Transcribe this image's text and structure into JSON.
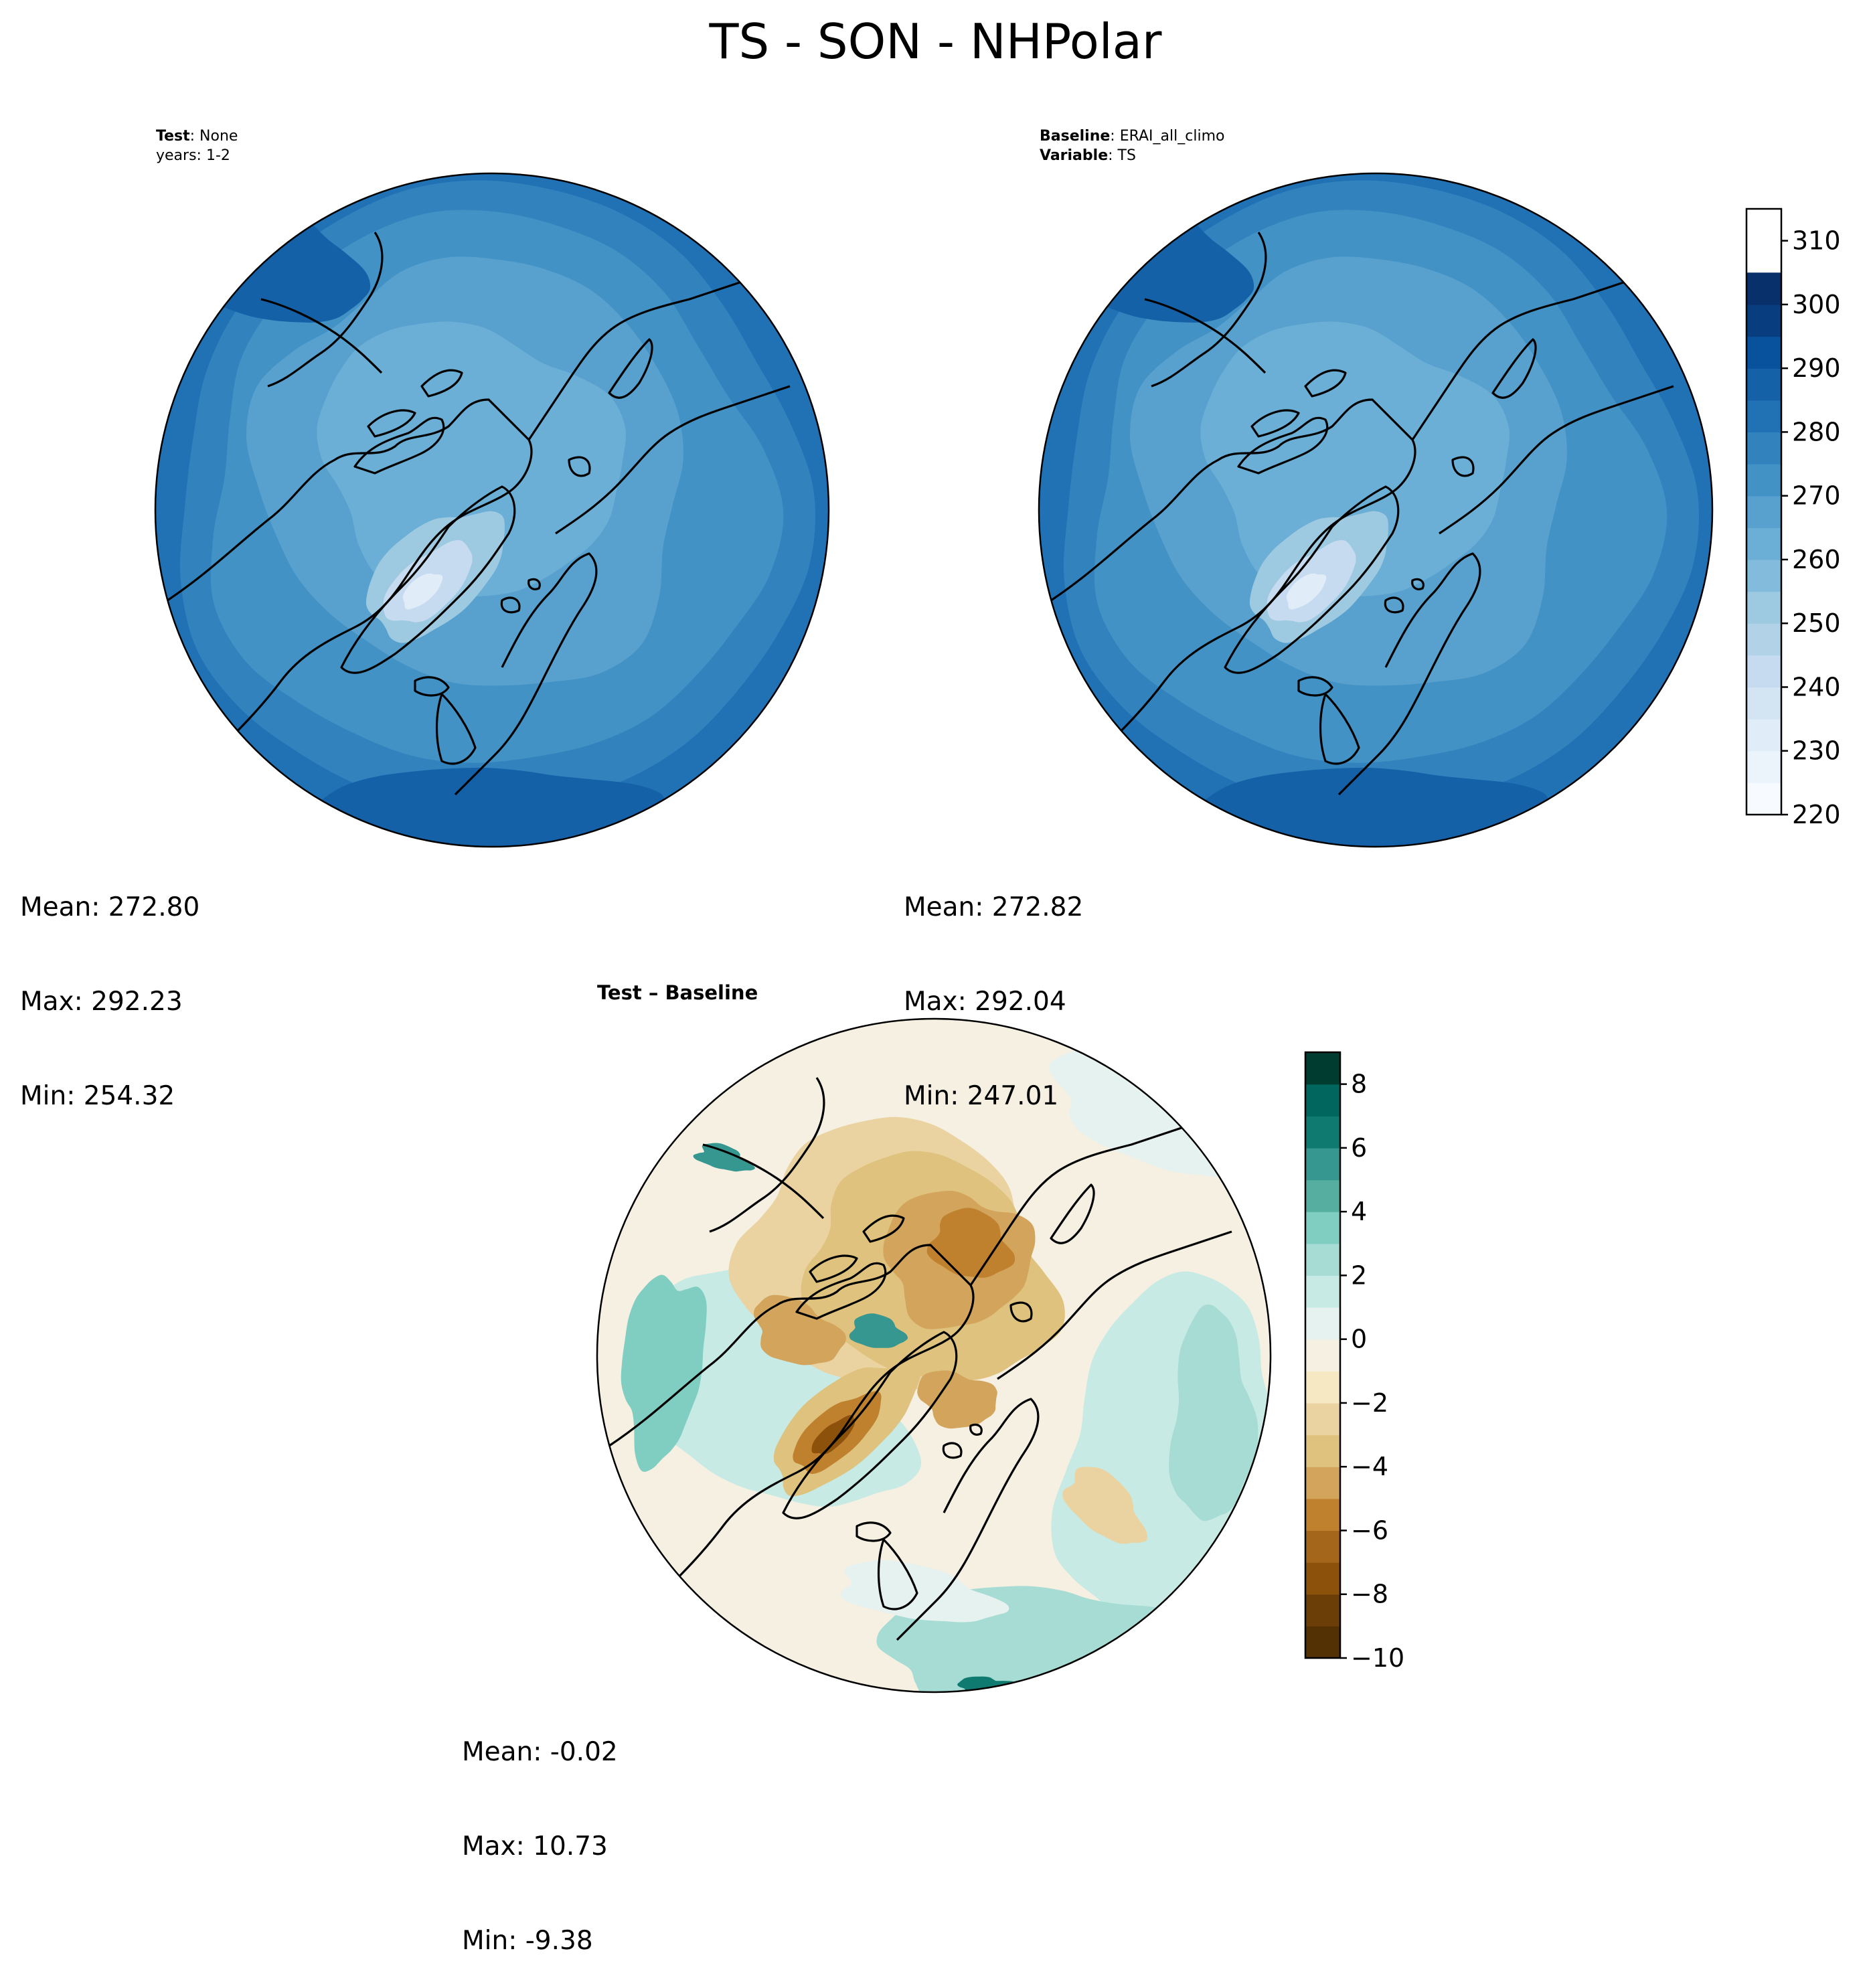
{
  "figure": {
    "title": "TS - SON - NHPolar"
  },
  "panels": [
    {
      "id": "test",
      "header": [
        {
          "label": "Test",
          "sep": ": ",
          "value": "None"
        },
        {
          "label": "",
          "sep": "",
          "value": "years: 1-2"
        }
      ],
      "stats": {
        "mean": "Mean: 272.80",
        "max": "Max: 292.23",
        "min": "Min: 254.32"
      }
    },
    {
      "id": "baseline",
      "header": [
        {
          "label": "Baseline",
          "sep": ": ",
          "value": "ERAI_all_climo"
        },
        {
          "label": "Variable",
          "sep": ": ",
          "value": "TS"
        }
      ],
      "stats": {
        "mean": "Mean: 272.82",
        "max": "Max: 292.04",
        "min": "Min: 247.01"
      }
    },
    {
      "id": "difference",
      "header": [
        {
          "label": "Test",
          "sep": " – ",
          "value": "Baseline",
          "bold_value": true
        }
      ],
      "stats": {
        "mean": "Mean: -0.02",
        "max": "Max: 10.73",
        "min": "Min: -9.38"
      }
    }
  ],
  "colorbars": {
    "ts": {
      "min": 220,
      "max": 315,
      "step": 5,
      "ticks": [
        220,
        230,
        240,
        250,
        260,
        270,
        280,
        290,
        300,
        310
      ],
      "tick_labels": [
        "220",
        "230",
        "240",
        "250",
        "260",
        "270",
        "280",
        "290",
        "300",
        "310"
      ],
      "colormap": "Blues",
      "colors": [
        "#f7fbff",
        "#ebf3fb",
        "#e0ecf8",
        "#d3e4f3",
        "#c6dbef",
        "#b2d2e8",
        "#9ecae1",
        "#82bbdb",
        "#6baed6",
        "#58a1cf",
        "#4292c6",
        "#3282be",
        "#2171b5",
        "#1461a8",
        "#08519c",
        "#083d7f",
        "#08306b"
      ]
    },
    "diff": {
      "min": -10,
      "max": 9,
      "step": 1,
      "ticks": [
        -10,
        -8,
        -6,
        -4,
        -2,
        0,
        2,
        4,
        6,
        8
      ],
      "tick_labels": [
        "−10",
        "−8",
        "−6",
        "−4",
        "−2",
        "0",
        "2",
        "4",
        "6",
        "8"
      ],
      "colormap": "BrBG",
      "colors": [
        "#543005",
        "#6b3d07",
        "#8c510a",
        "#a4661a",
        "#bf812d",
        "#d3a45c",
        "#dfc27d",
        "#ead3a0",
        "#f6e8c3",
        "#f5f0e2",
        "#e6f2ef",
        "#c7eae5",
        "#a6dcd3",
        "#80cdc1",
        "#55ae9f",
        "#35978f",
        "#0f7a70",
        "#01665e",
        "#003c30"
      ]
    }
  }
}
